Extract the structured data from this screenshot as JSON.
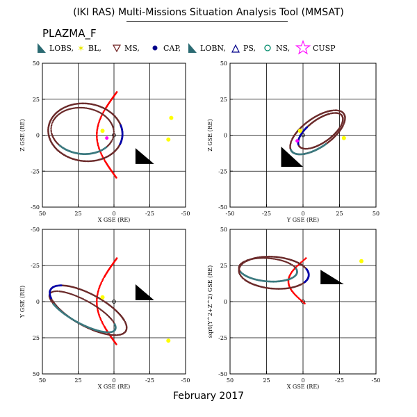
{
  "title": "(IKI RAS) Multi-Missions Situation Analysis Tool (MMSAT)",
  "mission": "PLAZMA_F",
  "footer_date": "February 2017",
  "legend": [
    {
      "key": "lobs",
      "label": "LOBS,",
      "icon": "filled-triangle",
      "color": "#2a6a72"
    },
    {
      "key": "bl",
      "label": "BL,",
      "icon": "star",
      "color": "#e8e800"
    },
    {
      "key": "ms",
      "label": "MS,",
      "icon": "open-triangle-down",
      "color": "#6b1a1a"
    },
    {
      "key": "cap",
      "label": "CAP,",
      "icon": "filled-circle",
      "color": "#00008b"
    },
    {
      "key": "lobn",
      "label": "LOBN,",
      "icon": "filled-triangle",
      "color": "#2a6a72"
    },
    {
      "key": "ps",
      "label": "PS,",
      "icon": "open-triangle-up",
      "color": "#00008b"
    },
    {
      "key": "ns",
      "label": "NS,",
      "icon": "open-circle",
      "color": "#008b6b"
    },
    {
      "key": "cusp",
      "label": "CUSP",
      "icon": "open-star",
      "color": "#ff00ff"
    }
  ],
  "colors": {
    "magnetopause": "#ff0000",
    "ms": "#6b2a2a",
    "lobe": "#3a7a80",
    "cap": "#0000aa",
    "bl": "#ffff00",
    "cusp": "#ff00ff",
    "earth_shadow": "#000000"
  },
  "chart_data": [
    {
      "type": "scatter",
      "panel": "top-left",
      "xlabel": "X GSE (RE)",
      "ylabel": "Z GSE (RE)",
      "xlim": [
        50,
        -50
      ],
      "ylim": [
        -50,
        50
      ],
      "x_ticks": [
        "50",
        "25",
        "0",
        "-25",
        "-50"
      ],
      "y_ticks": [
        "-50",
        "-25",
        "0",
        "25",
        "50"
      ],
      "grid": true
    },
    {
      "type": "scatter",
      "panel": "top-right",
      "xlabel": "Y GSE (RE)",
      "ylabel": "Z GSE (RE)",
      "xlim": [
        -50,
        50
      ],
      "ylim": [
        -50,
        50
      ],
      "x_ticks": [
        "-50",
        "-25",
        "0",
        "25",
        "50"
      ],
      "y_ticks": [
        "-50",
        "-25",
        "0",
        "25",
        "50"
      ],
      "grid": true
    },
    {
      "type": "scatter",
      "panel": "bottom-left",
      "xlabel": "X GSE (RE)",
      "ylabel": "Y GSE (RE)",
      "xlim": [
        50,
        -50
      ],
      "ylim": [
        50,
        -50
      ],
      "x_ticks": [
        "50",
        "25",
        "0",
        "-25",
        "-50"
      ],
      "y_ticks": [
        "50",
        "25",
        "0",
        "-25",
        "-50"
      ],
      "grid": true
    },
    {
      "type": "scatter",
      "panel": "bottom-right",
      "xlabel": "X GSE (RE)",
      "ylabel": "sqrt(Y^2+Z^2) GSE (RE)",
      "xlim": [
        50,
        -50
      ],
      "ylim": [
        -50,
        50
      ],
      "x_ticks": [
        "50",
        "25",
        "0",
        "-25",
        "-50"
      ],
      "y_ticks": [
        "-50",
        "-25",
        "0",
        "25",
        "50"
      ],
      "grid": true
    }
  ]
}
